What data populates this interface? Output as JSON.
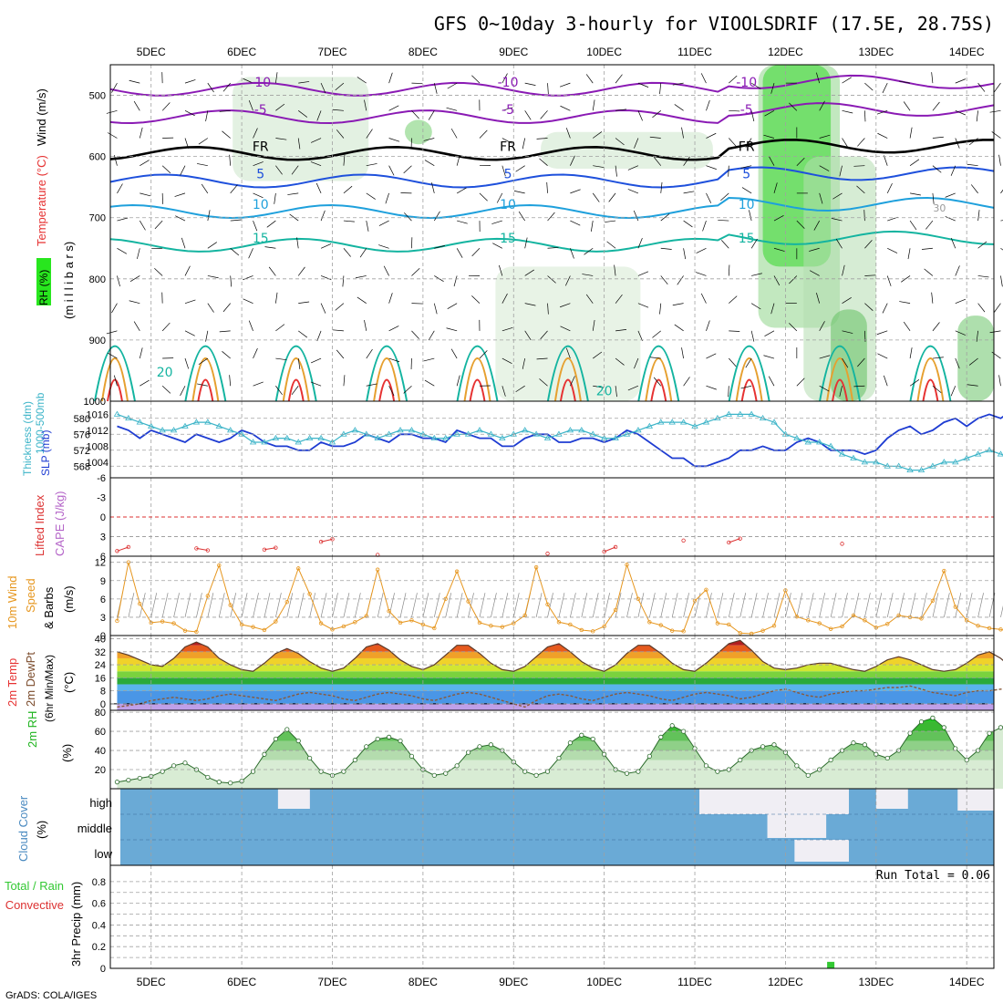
{
  "title": "GFS 0~10day 3-hourly for VIOOLSDRIF (17.5E, 28.75S)",
  "credit": "GrADS: COLA/IGES",
  "colors": {
    "frame": "#000000",
    "grid": "#a0a0a0",
    "temp_purple": "#8a1ab4",
    "temp_blue": "#1e50dc",
    "temp_lightblue": "#1ea0dc",
    "temp_teal": "#14b4a0",
    "temp_orange": "#e6a030",
    "temp_red": "#e63232",
    "rh_green": "#28e61e",
    "thickness": "#1e3cd2",
    "slp": "#3cb4c8",
    "lifted": "#dc3232",
    "wind10m": "#e6961e",
    "rh2m": "#1eb41e",
    "cloud_bg": "#6aaad6",
    "cloud_clear": "#f0eef4",
    "precip": "#32c832"
  },
  "chart_data": [
    {
      "panel": "upper-air",
      "type": "heatmap",
      "labels": {
        "wind": "Wind (m/s)",
        "temperature": "Temperature (°C)",
        "rh": "RH (%)",
        "pressure_unit": "(m i l l i b a r s)"
      },
      "x_ticks": [
        "5DEC",
        "6DEC",
        "7DEC",
        "8DEC",
        "9DEC",
        "10DEC",
        "11DEC",
        "12DEC",
        "13DEC",
        "14DEC"
      ],
      "y_ticks": [
        500,
        600,
        700,
        800,
        900,
        1000
      ],
      "ylim": [
        450,
        1000
      ],
      "contour_labels": [
        "-10",
        "-5",
        "FR",
        "5",
        "10",
        "15",
        "20",
        "30"
      ],
      "isotherms": [
        {
          "label": "-10",
          "p": 490,
          "color": "purple"
        },
        {
          "label": "-5",
          "p": 535,
          "color": "purple"
        },
        {
          "label": "FR",
          "p": 595,
          "color": "black"
        },
        {
          "label": "5",
          "p": 640,
          "color": "blue"
        },
        {
          "label": "10",
          "p": 690,
          "color": "lightblue"
        },
        {
          "label": "15",
          "p": 745,
          "color": "teal"
        }
      ]
    },
    {
      "panel": "thickness-slp",
      "type": "line",
      "labels": {
        "thickness": "Thickness (dm)",
        "thickness_layer": "1000-500mb",
        "slp": "SLP (mb)"
      },
      "left_ticks": [
        568,
        572,
        576,
        580
      ],
      "right_ticks": [
        1004,
        1008,
        1012,
        1016
      ],
      "series": [
        {
          "name": "Thickness",
          "values": [
            578,
            577,
            575,
            577,
            576,
            575,
            574,
            576,
            575,
            574,
            575,
            577,
            576,
            574,
            573,
            573,
            572,
            572,
            574,
            573,
            573,
            574,
            576,
            575,
            574,
            576,
            576,
            575,
            575,
            574,
            577,
            576,
            575,
            575,
            573,
            573,
            575,
            576,
            576,
            574,
            574,
            575,
            575,
            574,
            575,
            577,
            576,
            574,
            572,
            570,
            570,
            568,
            568,
            569,
            570,
            572,
            572,
            573,
            572,
            572,
            574,
            575,
            574,
            572,
            572,
            572,
            571,
            572,
            575,
            577,
            578,
            576,
            577,
            579,
            580,
            578,
            580,
            581,
            580,
            582,
            581,
            581
          ]
        },
        {
          "name": "SLP",
          "values": [
            1016,
            1015,
            1014,
            1013,
            1012,
            1012,
            1013,
            1014,
            1014,
            1013,
            1012,
            1011,
            1009,
            1009,
            1010,
            1010,
            1009,
            1010,
            1010,
            1009,
            1011,
            1012,
            1011,
            1010,
            1011,
            1012,
            1012,
            1011,
            1010,
            1010,
            1011,
            1011,
            1012,
            1011,
            1010,
            1011,
            1012,
            1011,
            1010,
            1011,
            1012,
            1012,
            1011,
            1010,
            1010,
            1011,
            1012,
            1013,
            1014,
            1014,
            1014,
            1013,
            1014,
            1015,
            1016,
            1016,
            1016,
            1015,
            1014,
            1011,
            1010,
            1009,
            1009,
            1008,
            1006,
            1005,
            1004,
            1004,
            1003,
            1003,
            1002,
            1002,
            1003,
            1004,
            1004,
            1005,
            1006,
            1007,
            1006,
            1005,
            1004,
            1005
          ]
        }
      ]
    },
    {
      "panel": "stability",
      "type": "line",
      "labels": {
        "lifted": "Lifted Index",
        "cape": "CAPE (J/kg)"
      },
      "left_ticks": [
        6,
        3,
        0,
        -3,
        -6
      ],
      "ylim": [
        -6,
        6
      ],
      "series": [
        {
          "name": "Lifted Index",
          "values": [
            5.2,
            4.6,
            null,
            null,
            null,
            null,
            null,
            4.8,
            5.1,
            null,
            null,
            null,
            null,
            5.0,
            4.7,
            null,
            null,
            null,
            3.8,
            3.4,
            null,
            null,
            null,
            5.8,
            null,
            null,
            null,
            null,
            null,
            null,
            null,
            null,
            null,
            null,
            null,
            null,
            null,
            null,
            5.6,
            null,
            null,
            null,
            null,
            5.3,
            4.6,
            null,
            null,
            null,
            null,
            null,
            3.6,
            null,
            null,
            null,
            3.9,
            3.3,
            null,
            null,
            null,
            null,
            null,
            null,
            null,
            null,
            4.1,
            null,
            null,
            null,
            null,
            null,
            null,
            null,
            null,
            null,
            null,
            null,
            null,
            null,
            null,
            null,
            null,
            null
          ]
        }
      ]
    },
    {
      "panel": "wind10m",
      "type": "line",
      "labels": {
        "title1": "10m Wind",
        "title2": "Speed",
        "title3": "& Barbs",
        "unit": "(m/s)"
      },
      "left_ticks": [
        0,
        3,
        6,
        9,
        12
      ],
      "ylim": [
        0,
        13
      ],
      "series": [
        {
          "name": "Speed",
          "values": [
            2.4,
            12.0,
            5.2,
            2.1,
            2.3,
            2.0,
            0.8,
            0.6,
            6.5,
            11.5,
            5.0,
            1.8,
            1.4,
            0.9,
            2.3,
            5.5,
            11.0,
            6.8,
            2.0,
            1.0,
            1.5,
            2.2,
            3.2,
            10.8,
            4.0,
            2.1,
            2.5,
            1.8,
            1.2,
            6.0,
            10.5,
            5.6,
            2.1,
            1.6,
            1.4,
            2.0,
            3.3,
            11.2,
            5.1,
            2.2,
            1.8,
            0.9,
            0.7,
            1.5,
            4.2,
            11.6,
            6.0,
            2.2,
            1.7,
            0.8,
            0.7,
            5.7,
            7.5,
            2.0,
            1.8,
            0.4,
            0.3,
            0.8,
            1.6,
            7.4,
            3.1,
            2.5,
            2.0,
            1.1,
            1.5,
            3.3,
            2.5,
            1.3,
            1.9,
            3.3,
            3.0,
            2.8,
            5.7,
            10.6,
            4.7,
            2.5,
            1.6,
            1.2,
            1.0,
            0.6,
            2.4,
            1.0
          ]
        }
      ]
    },
    {
      "panel": "temperature",
      "type": "area",
      "labels": {
        "temp": "2m Temp",
        "dewpt": "2m DewPt",
        "minmax": "(6hr Min/Max)",
        "unit": "(°C)"
      },
      "left_ticks": [
        0,
        8,
        16,
        24,
        32,
        40
      ],
      "ylim": [
        -4,
        42
      ],
      "series": [
        {
          "name": "2m Temp",
          "values": [
            32,
            30,
            27,
            24,
            23,
            28,
            35,
            38,
            35,
            28,
            24,
            21,
            20,
            25,
            31,
            34,
            31,
            26,
            22,
            20,
            22,
            28,
            35,
            37,
            33,
            27,
            23,
            21,
            24,
            30,
            36,
            36,
            31,
            25,
            21,
            20,
            23,
            29,
            35,
            37,
            32,
            26,
            22,
            20,
            24,
            31,
            36,
            36,
            31,
            25,
            21,
            20,
            25,
            31,
            37,
            39,
            33,
            26,
            22,
            21,
            22,
            24,
            25,
            25,
            23,
            21,
            20,
            23,
            27,
            29,
            27,
            24,
            21,
            20,
            21,
            25,
            30,
            32,
            28,
            22,
            18,
            17
          ]
        },
        {
          "name": "2m DewPt",
          "values": [
            -2,
            -1,
            0,
            2,
            3,
            4,
            3,
            2,
            3,
            5,
            6,
            5,
            4,
            3,
            2,
            4,
            6,
            7,
            6,
            5,
            3,
            2,
            4,
            6,
            7,
            6,
            5,
            3,
            2,
            4,
            6,
            7,
            6,
            4,
            2,
            0,
            -2,
            2,
            5,
            6,
            5,
            3,
            2,
            4,
            6,
            7,
            6,
            5,
            3,
            2,
            4,
            6,
            7,
            6,
            5,
            3,
            4,
            6,
            8,
            9,
            7,
            5,
            4,
            6,
            7,
            8,
            8,
            9,
            10,
            10,
            11,
            9,
            7,
            6,
            5,
            7,
            8,
            8,
            9,
            10,
            11,
            12
          ]
        }
      ]
    },
    {
      "panel": "rh2m",
      "type": "area",
      "labels": {
        "title": "2m RH",
        "unit": "(%)"
      },
      "left_ticks": [
        20,
        40,
        60,
        80
      ],
      "ylim": [
        0,
        82
      ],
      "series": [
        {
          "name": "2m RH",
          "values": [
            7,
            9,
            11,
            13,
            18,
            24,
            27,
            20,
            12,
            7,
            6,
            8,
            18,
            36,
            52,
            62,
            50,
            32,
            18,
            14,
            18,
            30,
            44,
            52,
            54,
            50,
            34,
            20,
            14,
            16,
            24,
            38,
            44,
            46,
            40,
            28,
            18,
            14,
            18,
            32,
            48,
            56,
            52,
            36,
            20,
            16,
            18,
            34,
            54,
            66,
            60,
            42,
            24,
            18,
            20,
            30,
            40,
            44,
            46,
            38,
            24,
            14,
            20,
            30,
            40,
            48,
            46,
            36,
            32,
            40,
            58,
            70,
            74,
            64,
            42,
            30,
            40,
            58,
            64,
            68,
            76,
            60
          ]
        }
      ]
    },
    {
      "panel": "cloud",
      "type": "heatmap",
      "labels": {
        "title": "Cloud Cover",
        "unit": "(%)"
      },
      "levels": [
        "high",
        "middle",
        "low"
      ]
    },
    {
      "panel": "precip",
      "type": "bar",
      "labels": {
        "total": "Total / Rain",
        "convective": "Convective",
        "title": "3hr Precip (mm)",
        "run_total": "Run Total = 0.06"
      },
      "left_ticks": [
        0,
        0.2,
        0.4,
        0.6,
        0.8
      ],
      "ylim": [
        0,
        0.95
      ],
      "bars": [
        {
          "day": 12.5,
          "value": 0.06
        }
      ]
    }
  ]
}
